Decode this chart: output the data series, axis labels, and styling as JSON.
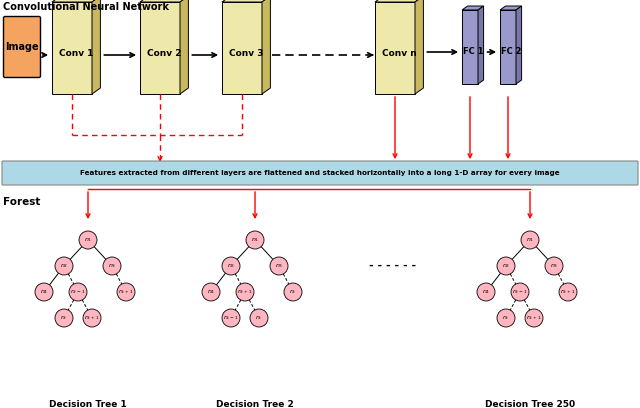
{
  "title": "Convolutional Neural Network",
  "bg_color": "#ffffff",
  "conv_color": "#EEE8AA",
  "conv_shadow_color": "#C8B860",
  "image_color": "#F4A460",
  "fc_color": "#9999CC",
  "fc_shadow_color": "#7777AA",
  "arrow_color": "#000000",
  "red_arrow_color": "#FF0000",
  "banner_color": "#ADD8E6",
  "banner_text": "Features extracted from different layers are flattened and stacked horizontally into a long 1-D array for every image",
  "tree_node_color": "#FFB6C1",
  "forest_label": "Forest",
  "tree_labels": [
    "Decision Tree 1",
    "Decision Tree 2",
    "Decision Tree 250"
  ],
  "conv_labels": [
    "Conv 1",
    "Conv 2",
    "Conv 3",
    "Conv n"
  ],
  "fc_labels": [
    "FC 1",
    "FC 2"
  ],
  "image_label": "Image",
  "fig_w": 6.4,
  "fig_h": 4.08,
  "dpi": 100
}
